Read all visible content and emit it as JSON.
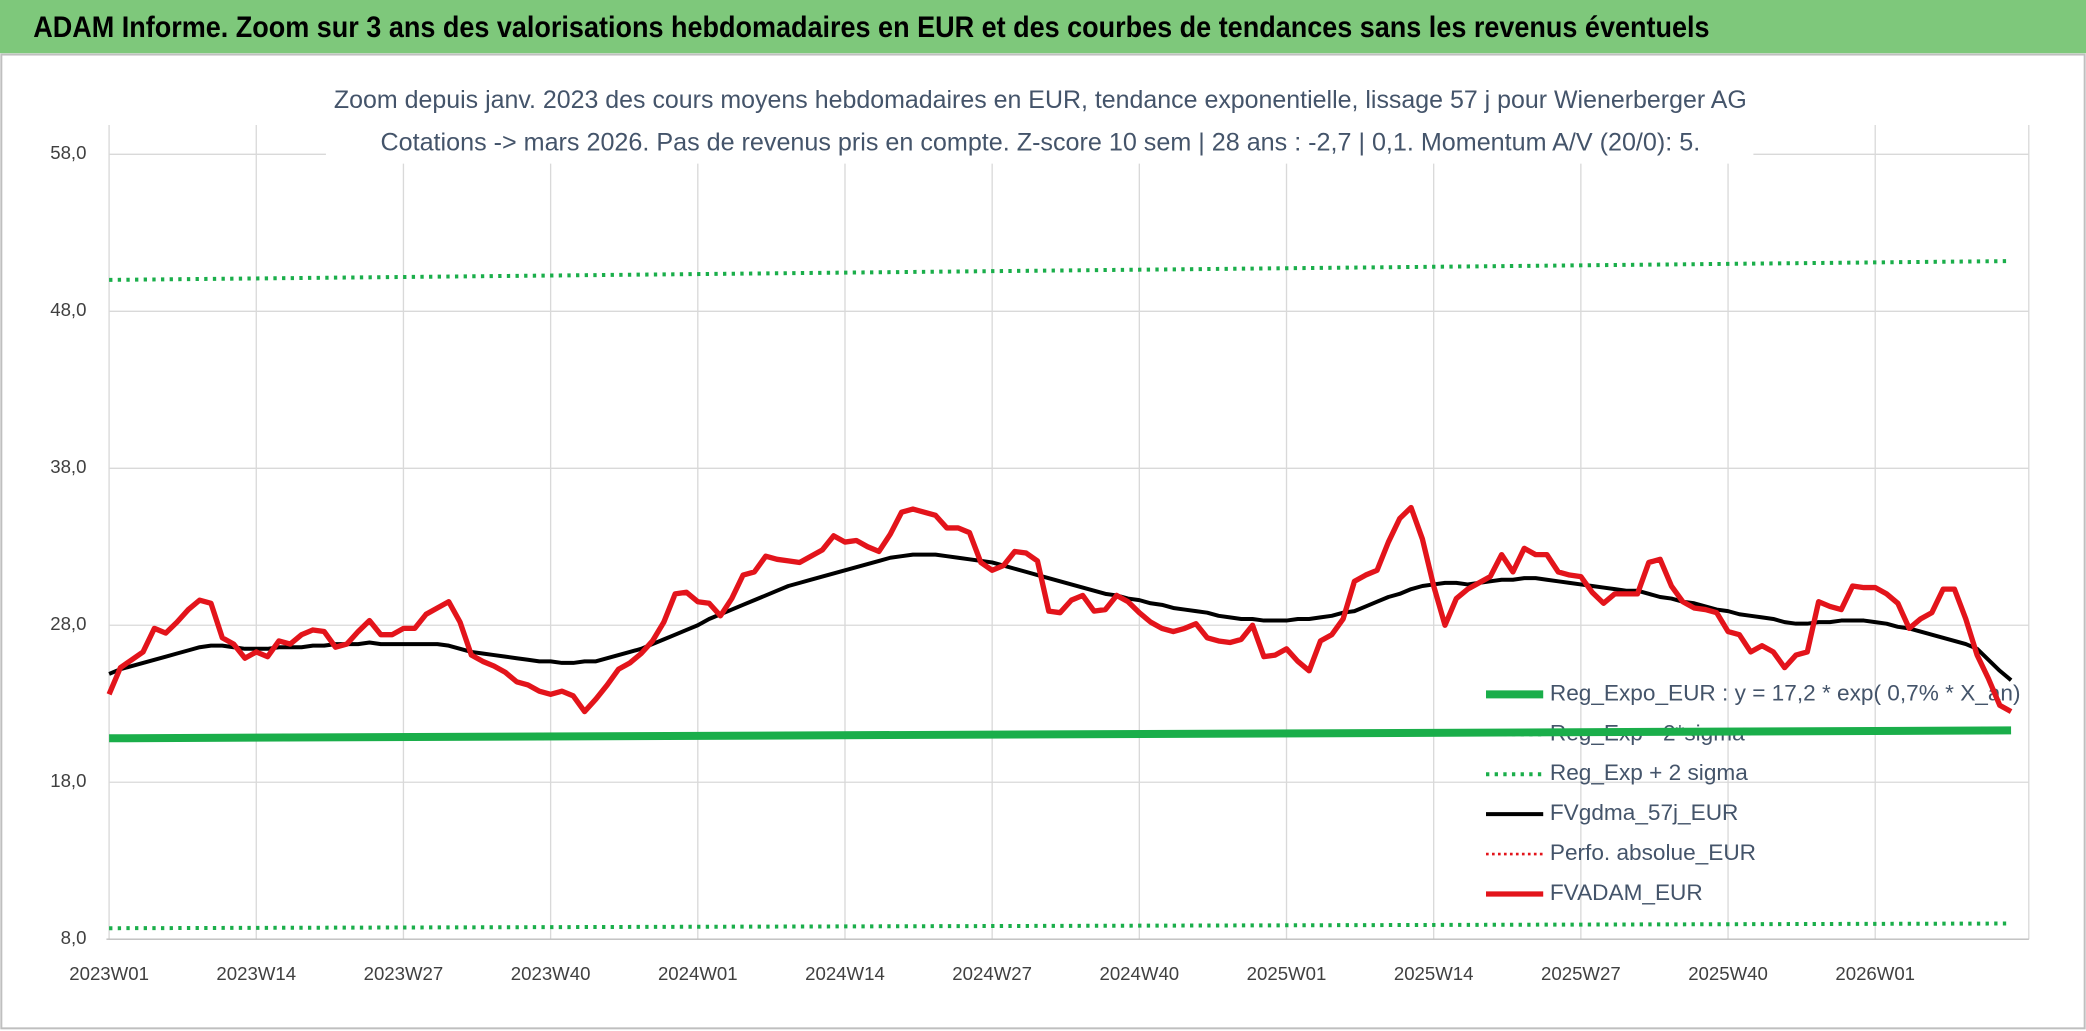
{
  "header": {
    "title": "ADAM Informe. Zoom sur 3 ans des valorisations hebdomadaires en EUR et des courbes de tendances sans les revenus éventuels"
  },
  "chart_data": {
    "type": "line",
    "title": "Zoom depuis janv. 2023 des cours moyens hebdomadaires en EUR, tendance exponentielle, lissage 57 j pour Wienerberger AG",
    "subtitle": "Cotations -> mars 2026. Pas de revenus pris en compte. Z-score 10 sem | 28 ans : -2,7 | 0,1. Momentum A/V (20/0): 5.",
    "grid": true,
    "legend": "lower right",
    "xlim": [
      0,
      170
    ],
    "ylim": [
      8,
      58
    ],
    "xticks": [
      {
        "value": 0,
        "label": "2023W01"
      },
      {
        "value": 13,
        "label": "2023W14"
      },
      {
        "value": 26,
        "label": "2023W27"
      },
      {
        "value": 39,
        "label": "2023W40"
      },
      {
        "value": 52,
        "label": "2024W01"
      },
      {
        "value": 65,
        "label": "2024W14"
      },
      {
        "value": 78,
        "label": "2024W27"
      },
      {
        "value": 91,
        "label": "2024W40"
      },
      {
        "value": 104,
        "label": "2025W01"
      },
      {
        "value": 117,
        "label": "2025W14"
      },
      {
        "value": 130,
        "label": "2025W27"
      },
      {
        "value": 143,
        "label": "2025W40"
      },
      {
        "value": 156,
        "label": "2026W01"
      }
    ],
    "yticks": [
      {
        "value": 8,
        "label": "8,0"
      },
      {
        "value": 18,
        "label": "18,0"
      },
      {
        "value": 28,
        "label": "28,0"
      },
      {
        "value": 38,
        "label": "38,0"
      },
      {
        "value": 48,
        "label": "48,0"
      },
      {
        "value": 58,
        "label": "58,0"
      }
    ],
    "x": [
      0,
      1,
      2,
      3,
      4,
      5,
      6,
      7,
      8,
      9,
      10,
      11,
      12,
      13,
      14,
      15,
      16,
      17,
      18,
      19,
      20,
      21,
      22,
      23,
      24,
      25,
      26,
      27,
      28,
      29,
      30,
      31,
      32,
      33,
      34,
      35,
      36,
      37,
      38,
      39,
      40,
      41,
      42,
      43,
      44,
      45,
      46,
      47,
      48,
      49,
      50,
      51,
      52,
      53,
      54,
      55,
      56,
      57,
      58,
      59,
      60,
      61,
      62,
      63,
      64,
      65,
      66,
      67,
      68,
      69,
      70,
      71,
      72,
      73,
      74,
      75,
      76,
      77,
      78,
      79,
      80,
      81,
      82,
      83,
      84,
      85,
      86,
      87,
      88,
      89,
      90,
      91,
      92,
      93,
      94,
      95,
      96,
      97,
      98,
      99,
      100,
      101,
      102,
      103,
      104,
      105,
      106,
      107,
      108,
      109,
      110,
      111,
      112,
      113,
      114,
      115,
      116,
      117,
      118,
      119,
      120,
      121,
      122,
      123,
      124,
      125,
      126,
      127,
      128,
      129,
      130,
      131,
      132,
      133,
      134,
      135,
      136,
      137,
      138,
      139,
      140,
      141,
      142,
      143,
      144,
      145,
      146,
      147,
      148,
      149,
      150,
      151,
      152,
      153,
      154,
      155,
      156,
      157,
      158,
      159,
      160,
      161,
      162,
      163,
      164,
      165,
      166,
      167,
      168
    ],
    "series": [
      {
        "name": "Reg_Expo_EUR : y = 17,2 * exp( 0,7% *  X_an)",
        "color": "#1aae4a",
        "width": 6,
        "x": [
          0,
          168
        ],
        "values": [
          20.8,
          21.3
        ]
      },
      {
        "name": "Reg_Exp - 2*sigma",
        "color": "#1aae4a",
        "dash": "dotted",
        "width": 3,
        "x": [
          0,
          168
        ],
        "values": [
          8.7,
          9.0
        ]
      },
      {
        "name": "Reg_Exp + 2 sigma",
        "color": "#1aae4a",
        "dash": "dotted",
        "width": 3,
        "x": [
          0,
          168
        ],
        "values": [
          50.0,
          51.2
        ]
      },
      {
        "name": "FVgdma_57j_EUR",
        "color": "#000000",
        "width": 3,
        "values": [
          24.9,
          25.2,
          25.4,
          25.6,
          25.8,
          26.0,
          26.2,
          26.4,
          26.6,
          26.7,
          26.7,
          26.6,
          26.5,
          26.5,
          26.5,
          26.6,
          26.6,
          26.6,
          26.7,
          26.7,
          26.8,
          26.8,
          26.8,
          26.9,
          26.8,
          26.8,
          26.8,
          26.8,
          26.8,
          26.8,
          26.7,
          26.5,
          26.3,
          26.2,
          26.1,
          26.0,
          25.9,
          25.8,
          25.7,
          25.7,
          25.6,
          25.6,
          25.7,
          25.7,
          25.9,
          26.1,
          26.3,
          26.5,
          26.8,
          27.1,
          27.4,
          27.7,
          28.0,
          28.4,
          28.7,
          29.0,
          29.3,
          29.6,
          29.9,
          30.2,
          30.5,
          30.7,
          30.9,
          31.1,
          31.3,
          31.5,
          31.7,
          31.9,
          32.1,
          32.3,
          32.4,
          32.5,
          32.5,
          32.5,
          32.4,
          32.3,
          32.2,
          32.1,
          32.0,
          31.8,
          31.6,
          31.4,
          31.2,
          31.0,
          30.8,
          30.6,
          30.4,
          30.2,
          30.0,
          29.9,
          29.7,
          29.6,
          29.4,
          29.3,
          29.1,
          29.0,
          28.9,
          28.8,
          28.6,
          28.5,
          28.4,
          28.4,
          28.3,
          28.3,
          28.3,
          28.4,
          28.4,
          28.5,
          28.6,
          28.8,
          28.9,
          29.2,
          29.5,
          29.8,
          30.0,
          30.3,
          30.5,
          30.6,
          30.7,
          30.7,
          30.6,
          30.7,
          30.8,
          30.9,
          30.9,
          31.0,
          31.0,
          30.9,
          30.8,
          30.7,
          30.6,
          30.5,
          30.4,
          30.3,
          30.2,
          30.2,
          30.0,
          29.8,
          29.7,
          29.5,
          29.4,
          29.2,
          29.0,
          28.9,
          28.7,
          28.6,
          28.5,
          28.4,
          28.2,
          28.1,
          28.1,
          28.2,
          28.2,
          28.3,
          28.3,
          28.3,
          28.2,
          28.1,
          27.9,
          27.8,
          27.6,
          27.4,
          27.2,
          27.0,
          26.8,
          26.5,
          25.8,
          25.1,
          24.5
        ]
      },
      {
        "name": "Perfo. absolue_EUR",
        "color": "#e3141b",
        "dash": "dotted",
        "width": 2,
        "x": [],
        "values": []
      },
      {
        "name": "FVADAM_EUR",
        "color": "#e3141b",
        "width": 4,
        "values": [
          23.6,
          25.3,
          25.8,
          26.3,
          27.8,
          27.5,
          28.2,
          29.0,
          29.6,
          29.4,
          27.2,
          26.8,
          25.9,
          26.3,
          26.0,
          27.0,
          26.8,
          27.4,
          27.7,
          27.6,
          26.6,
          26.8,
          27.6,
          28.3,
          27.4,
          27.4,
          27.8,
          27.8,
          28.7,
          29.1,
          29.5,
          28.2,
          26.1,
          25.7,
          25.4,
          25.0,
          24.4,
          24.2,
          23.8,
          23.6,
          23.8,
          23.5,
          22.5,
          23.3,
          24.2,
          25.2,
          25.6,
          26.2,
          27.0,
          28.2,
          30.0,
          30.1,
          29.5,
          29.4,
          28.6,
          29.7,
          31.2,
          31.4,
          32.4,
          32.2,
          32.1,
          32.0,
          32.4,
          32.8,
          33.7,
          33.3,
          33.4,
          33.0,
          32.7,
          33.8,
          35.2,
          35.4,
          35.2,
          35.0,
          34.2,
          34.2,
          33.9,
          32.0,
          31.5,
          31.8,
          32.7,
          32.6,
          32.1,
          28.9,
          28.8,
          29.6,
          29.9,
          28.9,
          29.0,
          29.9,
          29.5,
          28.8,
          28.2,
          27.8,
          27.6,
          27.8,
          28.1,
          27.2,
          27.0,
          26.9,
          27.1,
          28.0,
          26.0,
          26.1,
          26.5,
          25.7,
          25.1,
          27.0,
          27.4,
          28.4,
          30.8,
          31.2,
          31.5,
          33.3,
          34.8,
          35.5,
          33.5,
          30.5,
          28.0,
          29.7,
          30.3,
          30.7,
          31.1,
          32.5,
          31.4,
          32.9,
          32.5,
          32.5,
          31.4,
          31.2,
          31.1,
          30.1,
          29.4,
          30.0,
          30.0,
          30.0,
          32.0,
          32.2,
          30.5,
          29.5,
          29.1,
          29.0,
          28.8,
          27.6,
          27.4,
          26.3,
          26.7,
          26.3,
          25.3,
          26.1,
          26.3,
          29.5,
          29.2,
          29.0,
          30.5,
          30.4,
          30.4,
          30.0,
          29.4,
          27.8,
          28.4,
          28.8,
          30.3,
          30.3,
          28.4,
          26.1,
          24.6,
          22.9,
          22.5
        ]
      }
    ]
  }
}
